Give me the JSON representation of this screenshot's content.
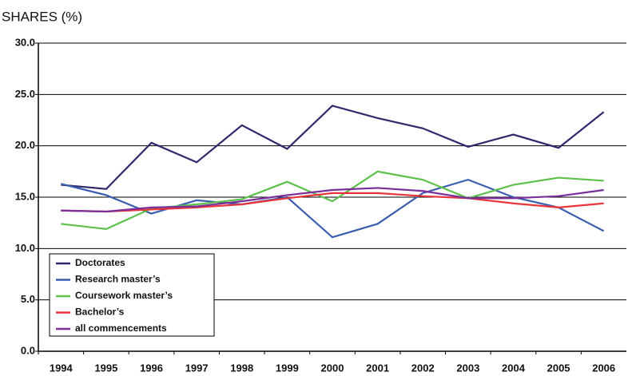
{
  "chart_data": {
    "type": "line",
    "y_label": "SHARES (%)",
    "categories": [
      "1994",
      "1995",
      "1996",
      "1997",
      "1998",
      "1999",
      "2000",
      "2001",
      "2002",
      "2003",
      "2004",
      "2005",
      "2006"
    ],
    "series": [
      {
        "name": "Doctorates",
        "color": "#2e2a6b",
        "values": [
          16.2,
          15.8,
          20.3,
          18.4,
          22.0,
          19.7,
          23.9,
          22.7,
          21.7,
          19.9,
          21.1,
          19.8,
          23.3
        ]
      },
      {
        "name": "Research master’s",
        "color": "#3a5db0",
        "values": [
          16.3,
          15.2,
          13.4,
          14.7,
          14.3,
          15.0,
          11.1,
          12.4,
          15.4,
          16.7,
          15.0,
          14.0,
          11.7
        ]
      },
      {
        "name": "Coursework master’s",
        "color": "#5cc04a",
        "values": [
          12.4,
          11.9,
          13.9,
          14.3,
          14.8,
          16.5,
          14.6,
          17.5,
          16.7,
          14.9,
          16.2,
          16.9,
          16.6
        ]
      },
      {
        "name": "Bachelor’s",
        "color": "#e8353a",
        "values": [
          13.7,
          13.6,
          13.8,
          14.0,
          14.3,
          14.9,
          15.4,
          15.4,
          15.1,
          14.9,
          14.4,
          14.0,
          14.4
        ]
      },
      {
        "name": "all commencements",
        "color": "#7a2e9a",
        "values": [
          13.7,
          13.6,
          14.0,
          14.1,
          14.6,
          15.2,
          15.7,
          15.9,
          15.6,
          14.9,
          14.9,
          15.1,
          15.7
        ]
      }
    ],
    "ylim": [
      0,
      30
    ],
    "yticks": [
      {
        "value": 0,
        "label": "0.0"
      },
      {
        "value": 5,
        "label": "5.0"
      },
      {
        "value": 10,
        "label": "10.0"
      },
      {
        "value": 15,
        "label": "15.0"
      },
      {
        "value": 20,
        "label": "20.0"
      },
      {
        "value": 25,
        "label": "25.0"
      },
      {
        "value": 30,
        "label": "30.0"
      }
    ],
    "grid": true,
    "legend": "lower left"
  }
}
